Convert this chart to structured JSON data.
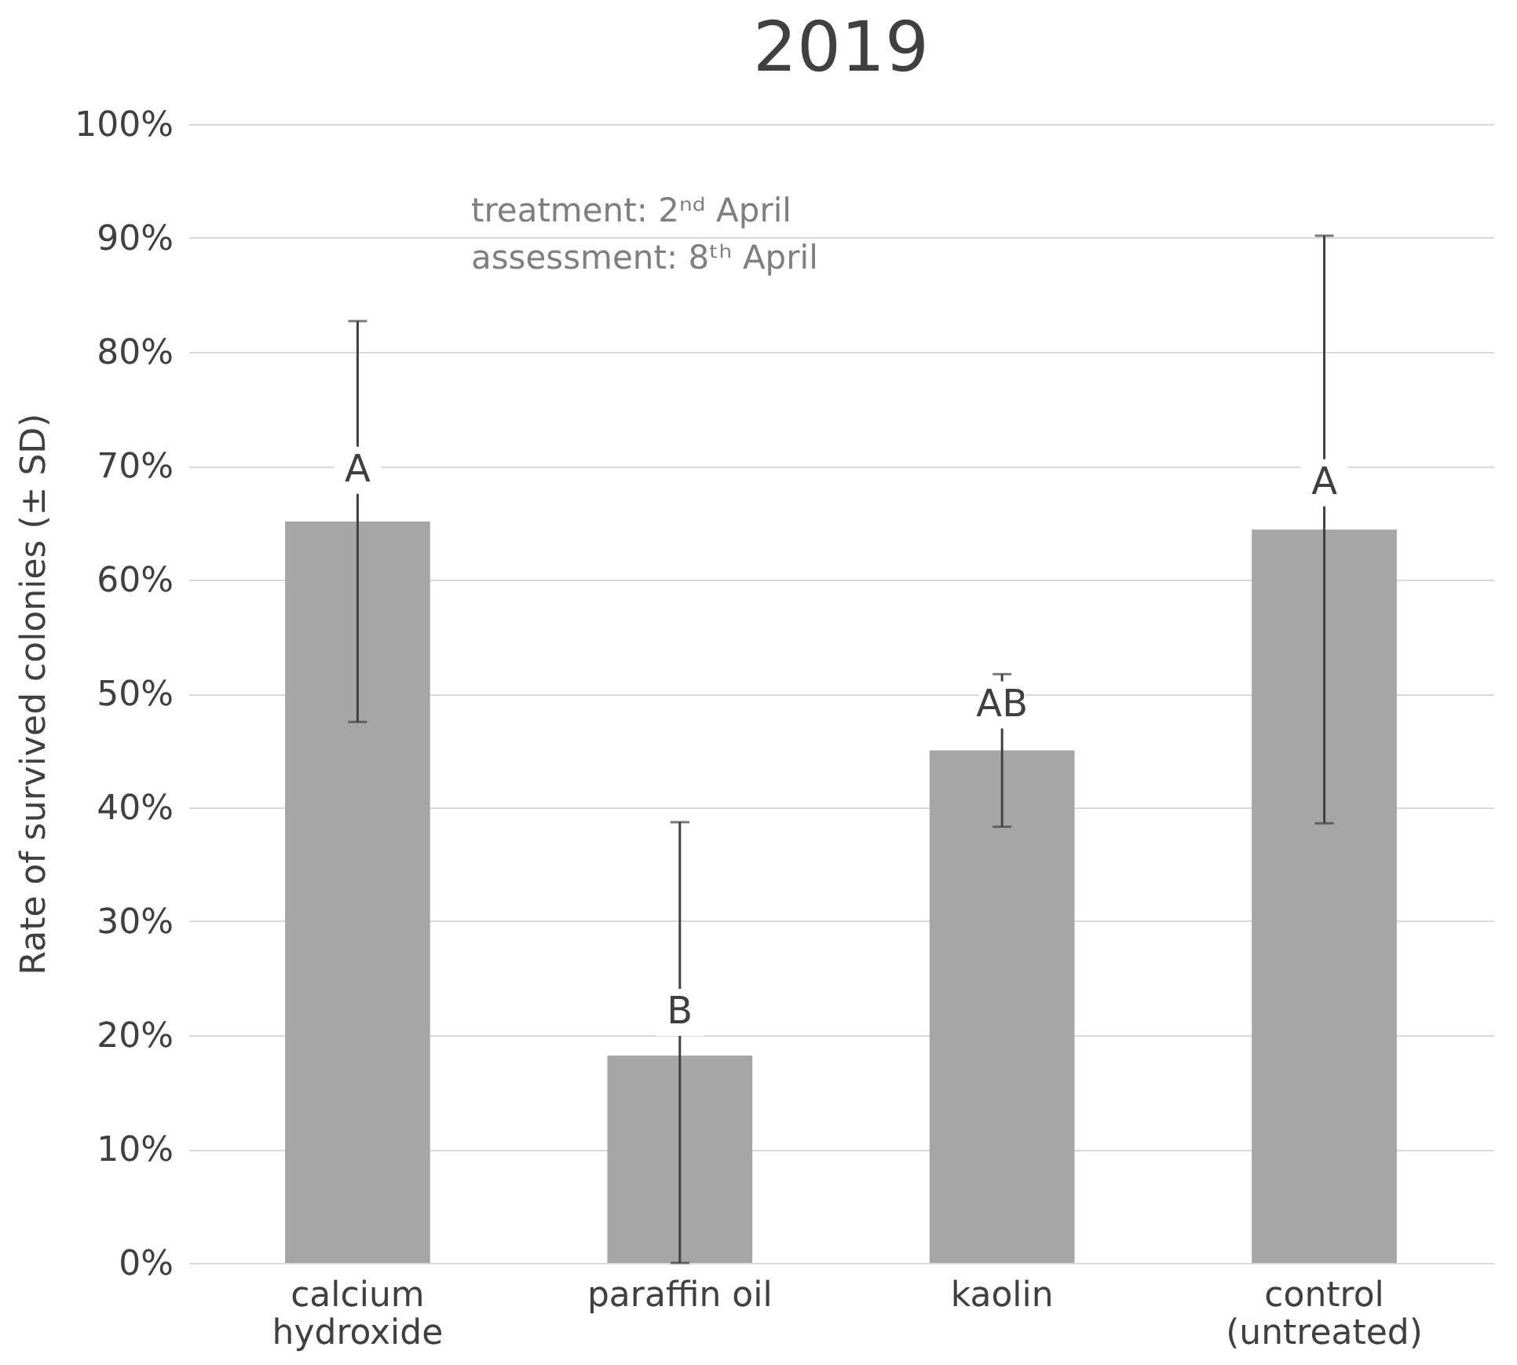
{
  "chart_data": {
    "type": "bar",
    "title": "2019",
    "ylabel": "Rate of survived colonies (± SD)",
    "categories": [
      "calcium hydroxide",
      "paraffin oil",
      "kaolin",
      "control (untreated)"
    ],
    "values": [
      65.1,
      18.2,
      45.0,
      64.4
    ],
    "errors": [
      17.6,
      [
        0,
        38.7
      ],
      6.7,
      25.8
    ],
    "color": "#a6a6a6",
    "ylim": [
      0,
      100
    ],
    "yticks": [
      {
        "value": 0,
        "label": "0%"
      },
      {
        "value": 10,
        "label": "10%"
      },
      {
        "value": 20,
        "label": "20%"
      },
      {
        "value": 30,
        "label": "30%"
      },
      {
        "value": 40,
        "label": "40%"
      },
      {
        "value": 50,
        "label": "50%"
      },
      {
        "value": 60,
        "label": "60%"
      },
      {
        "value": 70,
        "label": "70%"
      },
      {
        "value": 80,
        "label": "80%"
      },
      {
        "value": 90,
        "label": "90%"
      },
      {
        "value": 100,
        "label": "100%"
      }
    ],
    "grid": "y",
    "annotations": [
      {
        "text": "A",
        "x": "calcium hydroxide",
        "y": 69.6
      },
      {
        "text": "B",
        "x": "paraffin oil",
        "y": 22.0
      },
      {
        "text": "AB",
        "x": "kaolin",
        "y": 49.0
      },
      {
        "text": "A",
        "x": "control (untreated)",
        "y": 68.5
      },
      "treatment: 2ⁿᵈ April\nassessment: 8ᵗʰ April"
    ]
  }
}
